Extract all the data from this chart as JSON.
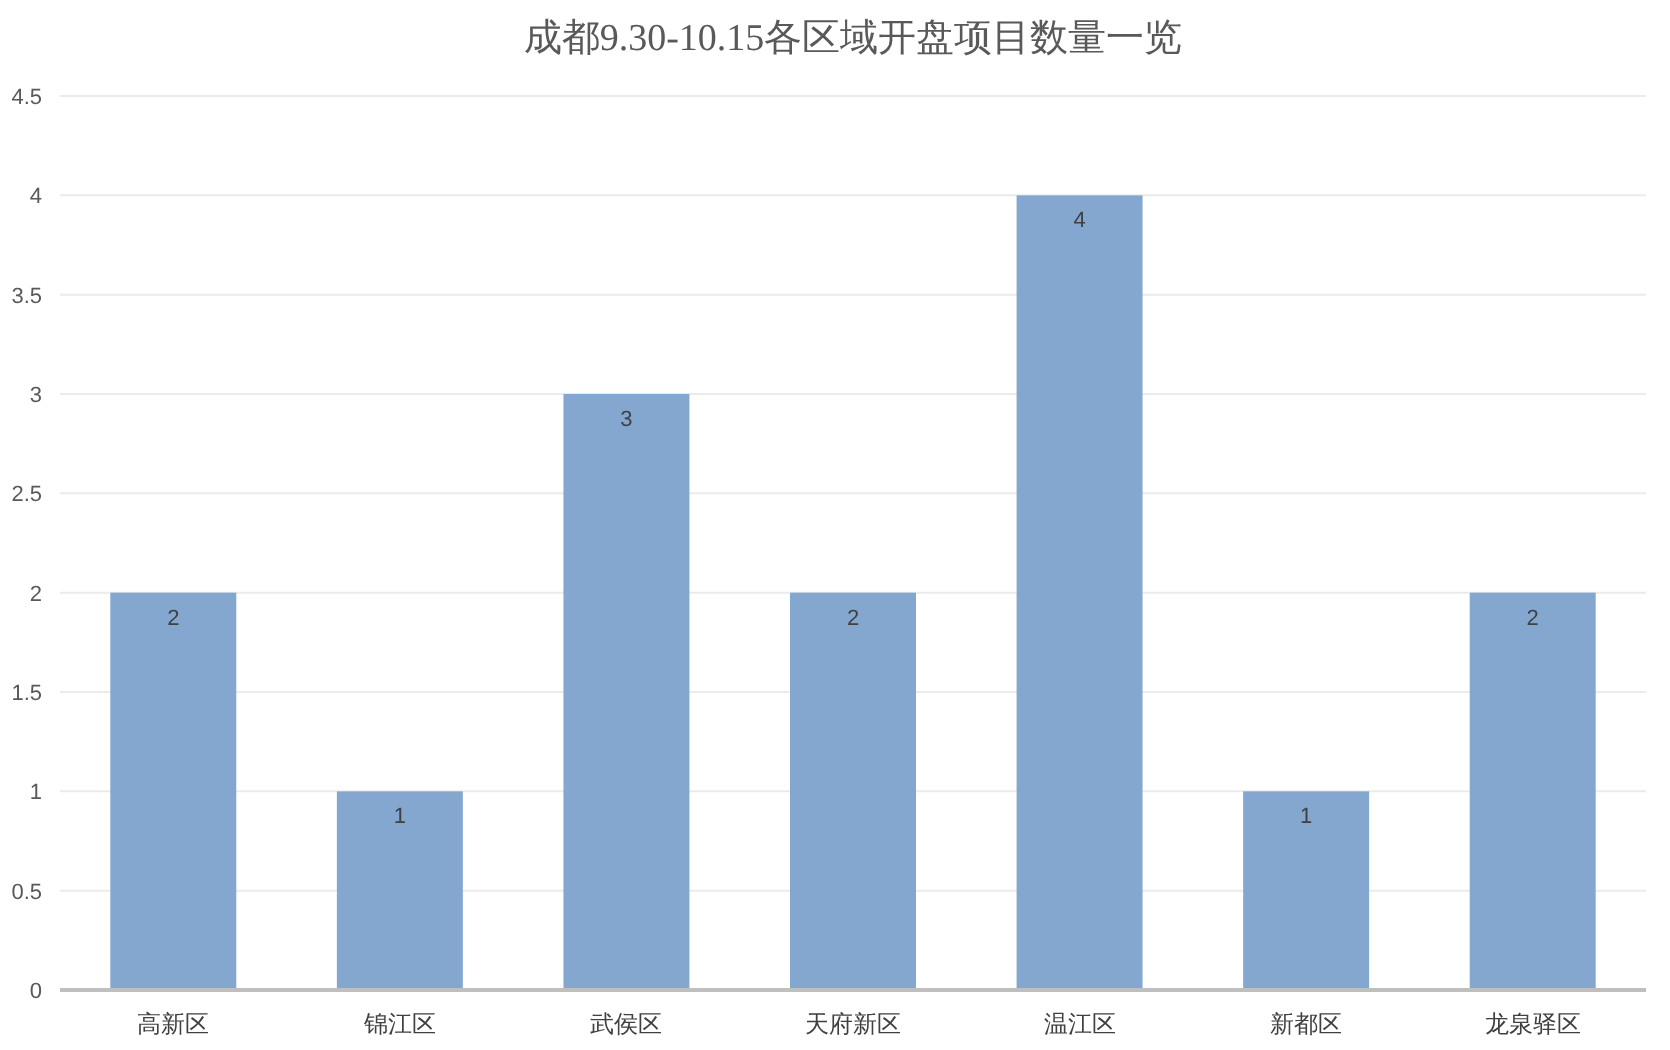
{
  "chart_data": {
    "type": "bar",
    "title": "成都9.30-10.15各区域开盘项目数量一览",
    "categories": [
      "高新区",
      "锦江区",
      "武侯区",
      "天府新区",
      "温江区",
      "新都区",
      "龙泉驿区"
    ],
    "values": [
      2,
      1,
      3,
      2,
      4,
      1,
      2
    ],
    "color": "#84a7d0",
    "ylim": [
      0,
      4.5
    ],
    "yticks": [
      0,
      0.5,
      1,
      1.5,
      2,
      2.5,
      3,
      3.5,
      4,
      4.5
    ],
    "grid": "y",
    "data_labels": true
  }
}
